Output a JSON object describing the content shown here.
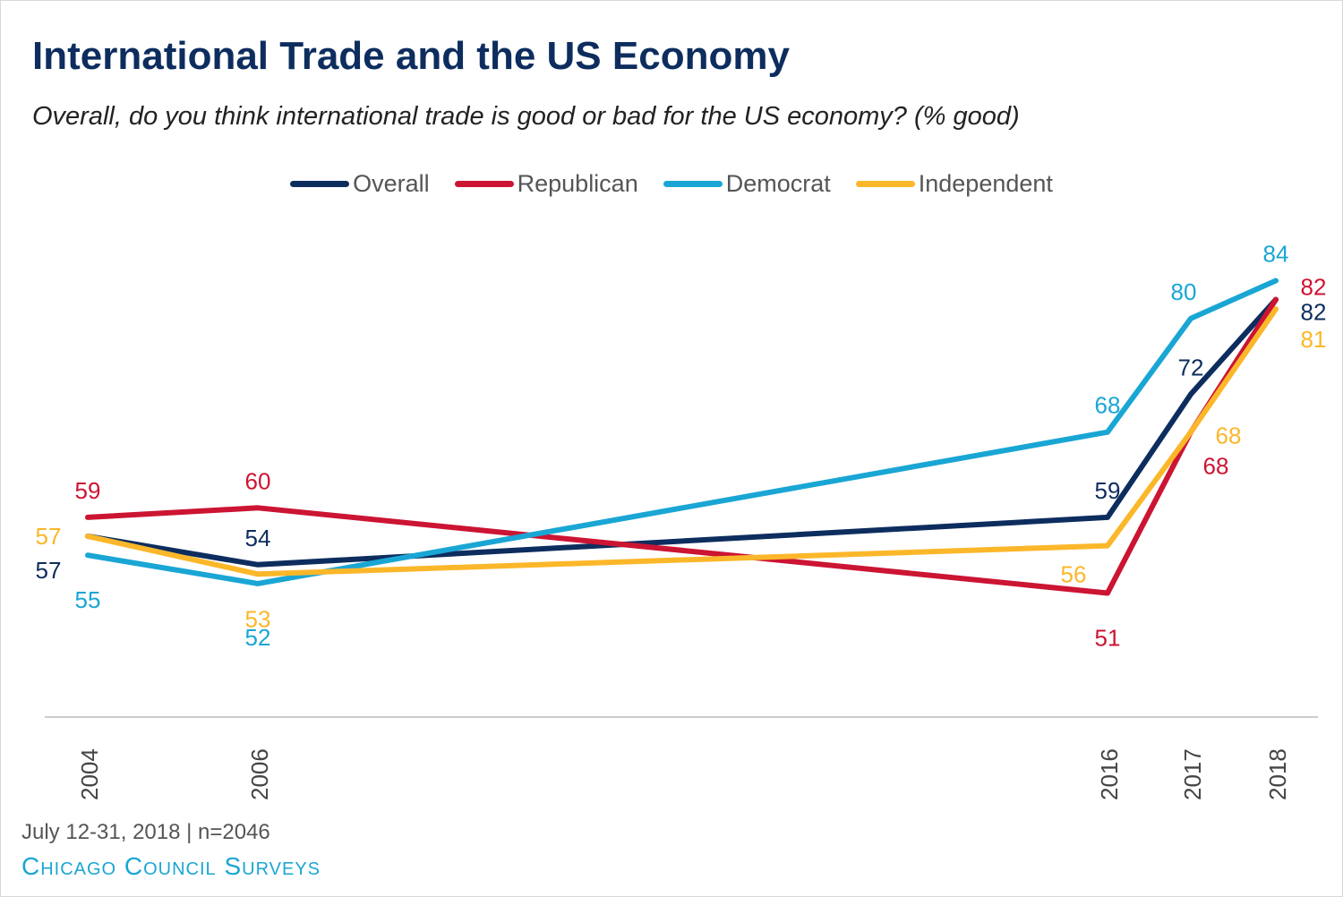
{
  "title": "International Trade and the US Economy",
  "subtitle": "Overall, do you think international trade is good or bad for the US economy? (% good)",
  "footer": {
    "date_note": "July 12-31, 2018 | n=2046",
    "source": "Chicago Council Surveys"
  },
  "chart_data": {
    "type": "line",
    "x": [
      2004,
      2006,
      2016,
      2017,
      2018
    ],
    "ylim": [
      38,
      90
    ],
    "legend_position": "top-center",
    "grid": false,
    "series": [
      {
        "name": "Overall",
        "color": "#0d2d5e",
        "values": [
          57,
          54,
          59,
          72,
          82
        ],
        "labels": [
          "57",
          "54",
          "59",
          "72",
          "82"
        ]
      },
      {
        "name": "Republican",
        "color": "#cc1433",
        "values": [
          59,
          60,
          51,
          68,
          82
        ],
        "labels": [
          "59",
          "60",
          "51",
          "68",
          "82"
        ]
      },
      {
        "name": "Democrat",
        "color": "#1aa6d4",
        "values": [
          55,
          52,
          68,
          80,
          84
        ],
        "labels": [
          "55",
          "52",
          "68",
          "80",
          "84"
        ]
      },
      {
        "name": "Independent",
        "color": "#fbb72a",
        "values": [
          57,
          53,
          56,
          68,
          81
        ],
        "labels": [
          "57",
          "53",
          "56",
          "68",
          "81"
        ]
      }
    ]
  }
}
